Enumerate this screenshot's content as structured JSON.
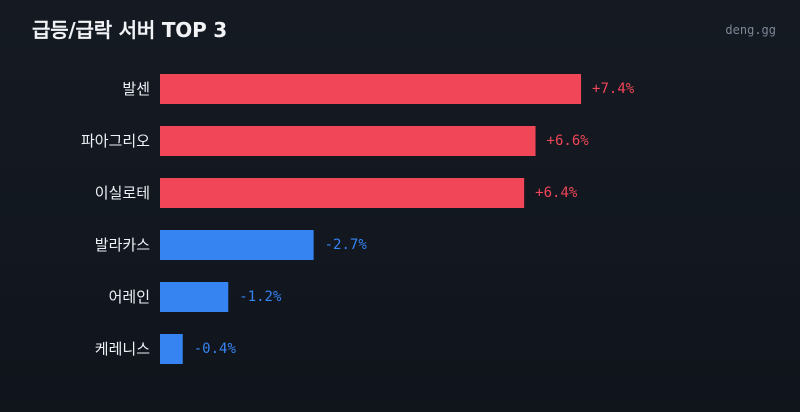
{
  "header": {
    "title": "급등/급락 서버 TOP 3",
    "brand": "deng.gg"
  },
  "colors": {
    "positive": "#f04657",
    "negative": "#3584f2",
    "background": "#121720"
  },
  "chart_data": {
    "type": "bar",
    "orientation": "horizontal",
    "title": "급등/급락 서버 TOP 3",
    "categories": [
      "발센",
      "파아그리오",
      "이실로테",
      "발라카스",
      "어레인",
      "케레니스"
    ],
    "values": [
      7.4,
      6.6,
      6.4,
      -2.7,
      -1.2,
      -0.4
    ],
    "labels": [
      "+7.4%",
      "+6.6%",
      "+6.4%",
      "-2.7%",
      "-1.2%",
      "-0.4%"
    ],
    "unit": "%",
    "grid": false,
    "legend": "none"
  }
}
